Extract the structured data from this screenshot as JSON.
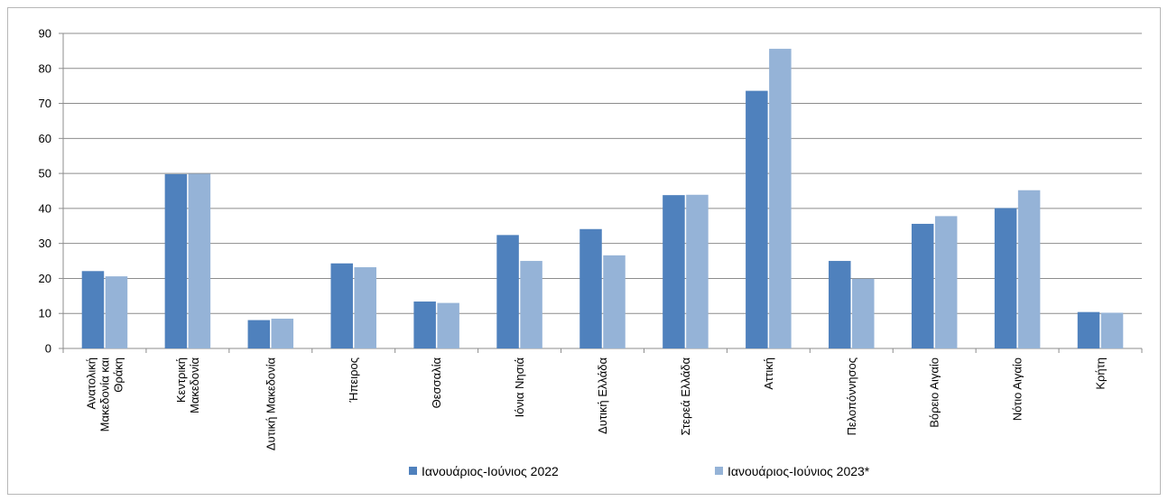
{
  "chart_data": {
    "type": "bar",
    "title": "",
    "xlabel": "",
    "ylabel": "",
    "ylim": [
      0,
      90
    ],
    "yticks": [
      0,
      10,
      20,
      30,
      40,
      50,
      60,
      70,
      80,
      90
    ],
    "grid": true,
    "legend_position": "bottom",
    "categories": [
      [
        "Ανατολική",
        "Μακεδονία και",
        "Θράκη"
      ],
      [
        "Κεντρική",
        "Μακεδονία"
      ],
      [
        "Δυτική Μακεδονία"
      ],
      [
        "Ήπειρος"
      ],
      [
        "Θεσσαλία"
      ],
      [
        "Ιόνια Νησιά"
      ],
      [
        "Δυτική Ελλάδα"
      ],
      [
        "Στερεά Ελλάδα"
      ],
      [
        "Αττική"
      ],
      [
        "Πελοπόννησος"
      ],
      [
        "Βόρειο Αιγαίο"
      ],
      [
        "Νότιο Αιγαίο"
      ],
      [
        "Κρήτη"
      ]
    ],
    "series": [
      {
        "name": "Ιανουάριος-Ιούνιος 2022",
        "color": "#4f81bd",
        "values": [
          22.1,
          49.8,
          8.1,
          24.3,
          13.4,
          32.4,
          34.1,
          43.8,
          73.6,
          25.0,
          35.6,
          40.1,
          10.4
        ]
      },
      {
        "name": "Ιανουάριος-Ιούνιος 2023*",
        "color": "#95b3d7",
        "values": [
          20.6,
          49.9,
          8.5,
          23.2,
          13.0,
          25.0,
          26.6,
          43.9,
          85.6,
          19.9,
          37.8,
          45.2,
          10.2
        ]
      }
    ]
  }
}
